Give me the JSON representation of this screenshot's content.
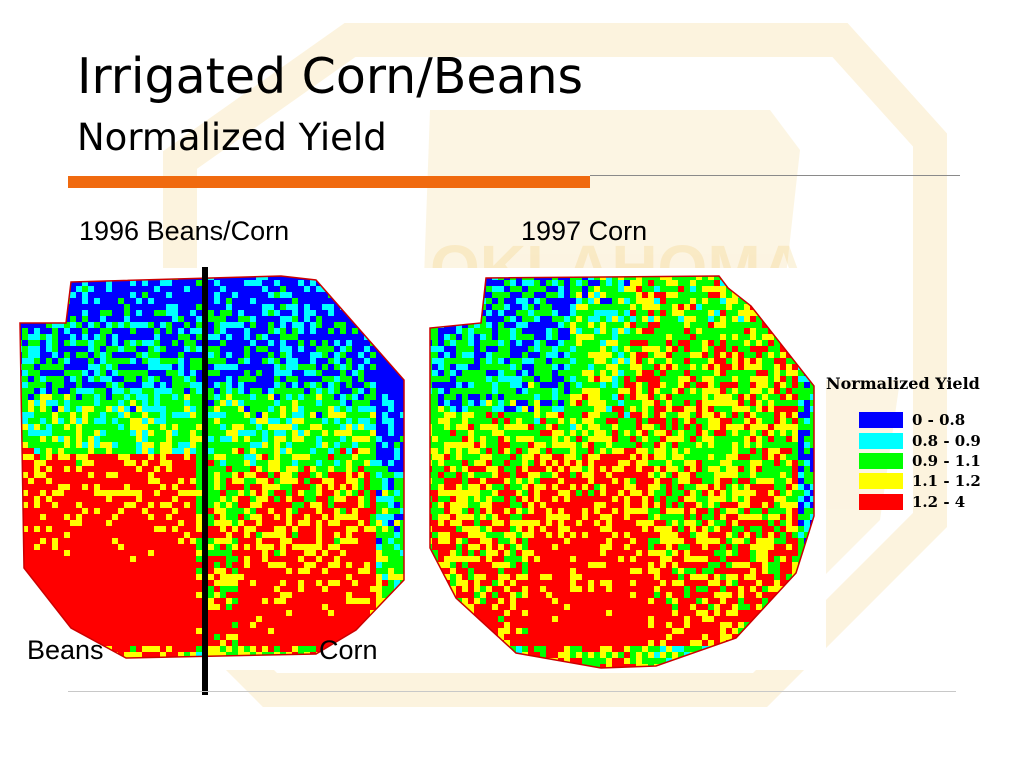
{
  "slide": {
    "title": "Irrigated Corn/Beans",
    "subtitle": "Normalized Yield"
  },
  "maps": [
    {
      "caption": "1996 Beans/Corn",
      "side_labels": [
        "Beans",
        "Corn"
      ]
    },
    {
      "caption": "1997 Corn"
    }
  ],
  "legend": {
    "title": "Normalized Yield",
    "classes": [
      {
        "label": "0 - 0.8",
        "color": "#0000ff"
      },
      {
        "label": "0.8 - 0.9",
        "color": "#00ffff"
      },
      {
        "label": "0.9 - 1.1",
        "color": "#00ff00"
      },
      {
        "label": "1.1 - 1.2",
        "color": "#ffff00"
      },
      {
        "label": "1.2 - 4",
        "color": "#ff0000"
      }
    ]
  },
  "watermark": {
    "text": "OKLAHOMA",
    "color": "#e9ac17"
  }
}
